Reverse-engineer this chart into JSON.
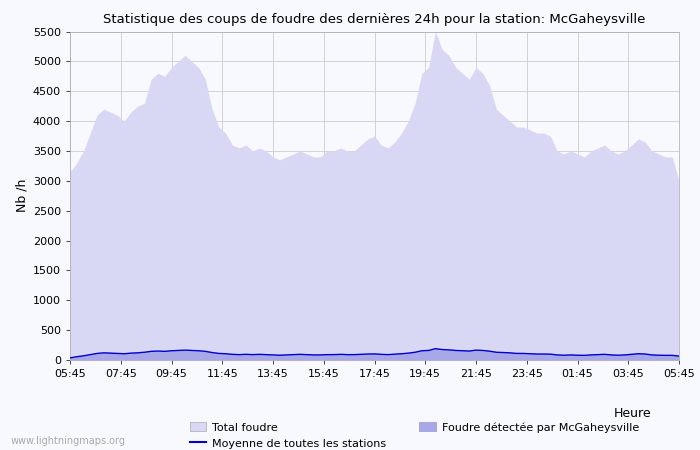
{
  "title": "Statistique des coups de foudre des dernières 24h pour la station: McGaheysville",
  "ylabel": "Nb /h",
  "xlabel": "Heure",
  "xlabels": [
    "05:45",
    "07:45",
    "09:45",
    "11:45",
    "13:45",
    "15:45",
    "17:45",
    "19:45",
    "21:45",
    "23:45",
    "01:45",
    "03:45",
    "05:45"
  ],
  "yticks": [
    0,
    500,
    1000,
    1500,
    2000,
    2500,
    3000,
    3500,
    4000,
    4500,
    5000,
    5500
  ],
  "ylim": [
    0,
    5500
  ],
  "color_total": "#d8d8f5",
  "color_detected": "#a8a8e8",
  "color_mean": "#0000cc",
  "background_color": "#f8f8ff",
  "grid_color": "#cccccc",
  "watermark": "www.lightningmaps.org",
  "legend_total": "Total foudre",
  "legend_mean": "Moyenne de toutes les stations",
  "legend_detected": "Foudre détectée par McGaheysville",
  "total_foudre": [
    3150,
    3300,
    3500,
    3800,
    4100,
    4200,
    4150,
    4100,
    4000,
    4150,
    4250,
    4300,
    4700,
    4800,
    4750,
    4900,
    5000,
    5100,
    5000,
    4900,
    4700,
    4200,
    3900,
    3800,
    3600,
    3550,
    3600,
    3500,
    3550,
    3500,
    3400,
    3350,
    3400,
    3450,
    3500,
    3450,
    3400,
    3400,
    3500,
    3500,
    3550,
    3500,
    3500,
    3600,
    3700,
    3750,
    3600,
    3550,
    3650,
    3800,
    4000,
    4300,
    4800,
    4900,
    5500,
    5200,
    5100,
    4900,
    4800,
    4700,
    4900,
    4800,
    4600,
    4200,
    4100,
    4000,
    3900,
    3900,
    3850,
    3800,
    3800,
    3750,
    3500,
    3450,
    3500,
    3450,
    3400,
    3500,
    3550,
    3600,
    3500,
    3450,
    3500,
    3600,
    3700,
    3650,
    3500,
    3450,
    3400,
    3400,
    3000
  ],
  "detected_foudre": [
    40,
    60,
    80,
    100,
    120,
    130,
    125,
    120,
    115,
    125,
    130,
    140,
    155,
    160,
    155,
    165,
    170,
    175,
    170,
    165,
    155,
    135,
    120,
    115,
    105,
    100,
    105,
    100,
    105,
    100,
    95,
    90,
    95,
    100,
    105,
    100,
    95,
    95,
    100,
    100,
    105,
    100,
    100,
    105,
    110,
    112,
    105,
    100,
    108,
    115,
    125,
    140,
    165,
    170,
    200,
    185,
    180,
    170,
    165,
    160,
    175,
    170,
    158,
    140,
    135,
    130,
    120,
    120,
    115,
    110,
    110,
    108,
    95,
    90,
    95,
    90,
    88,
    95,
    100,
    105,
    95,
    90,
    95,
    105,
    115,
    110,
    95,
    90,
    88,
    88,
    75
  ],
  "mean_line": [
    35,
    55,
    70,
    90,
    110,
    120,
    115,
    110,
    105,
    115,
    120,
    130,
    145,
    150,
    145,
    155,
    160,
    165,
    160,
    155,
    145,
    125,
    110,
    105,
    95,
    90,
    95,
    90,
    95,
    90,
    85,
    80,
    85,
    90,
    95,
    90,
    85,
    85,
    90,
    90,
    95,
    90,
    90,
    95,
    100,
    102,
    95,
    90,
    98,
    105,
    115,
    130,
    155,
    160,
    190,
    175,
    170,
    160,
    155,
    150,
    165,
    160,
    148,
    130,
    125,
    120,
    110,
    110,
    105,
    100,
    100,
    98,
    85,
    80,
    85,
    80,
    78,
    85,
    90,
    95,
    85,
    80,
    85,
    95,
    105,
    100,
    85,
    80,
    78,
    78,
    65
  ]
}
